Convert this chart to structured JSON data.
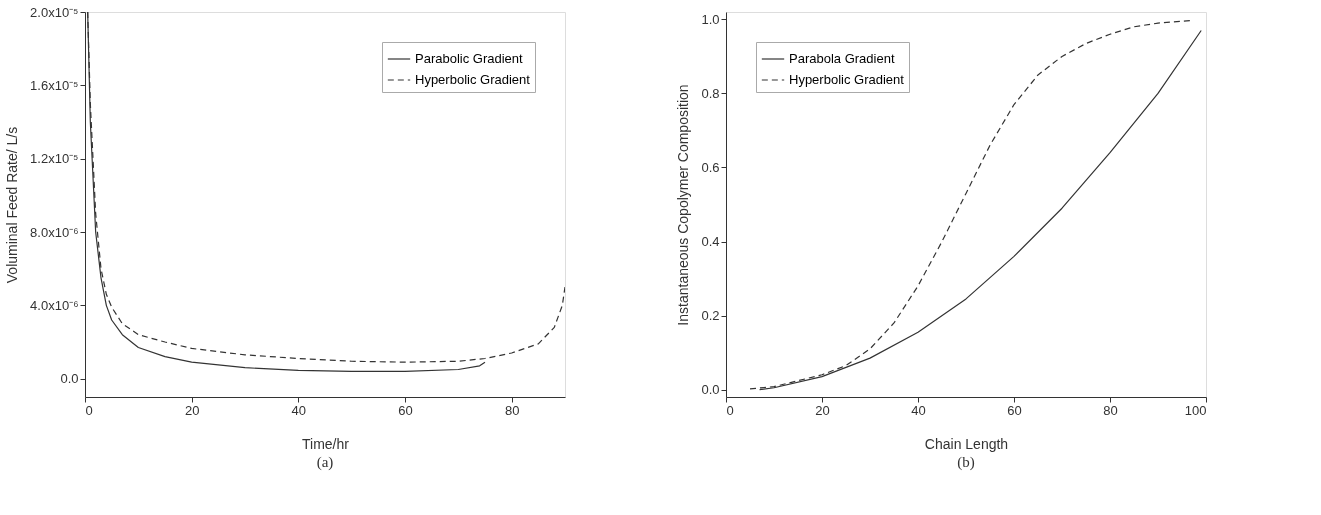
{
  "chart_data": [
    {
      "type": "line",
      "xlabel": "Time/hr",
      "ylabel": "Voluminal Feed Rate/ L/s",
      "annotations": [
        "(a)"
      ],
      "xlim": [
        0,
        90
      ],
      "xticks": [
        0,
        20,
        40,
        60,
        80
      ],
      "ylim": [
        -1e-06,
        2e-05
      ],
      "yticks": [
        {
          "value": 0,
          "label": "0.0"
        },
        {
          "value": 4e-06,
          "label": "4.0x10⁻⁶"
        },
        {
          "value": 8e-06,
          "label": "8.0x10⁻⁶"
        },
        {
          "value": 1.2e-05,
          "label": "1.2x10⁻⁵"
        },
        {
          "value": 1.6e-05,
          "label": "1.6x10⁻⁵"
        },
        {
          "value": 2e-05,
          "label": "2.0x10⁻⁵"
        }
      ],
      "grid": false,
      "legend": "top right",
      "marker": "none",
      "series": [
        {
          "name": "Parabolic Gradient",
          "color": "#333333",
          "line_style": "solid",
          "x": [
            0.5,
            1,
            2,
            3,
            4,
            5,
            7,
            10,
            15,
            20,
            30,
            40,
            50,
            60,
            70,
            74,
            75
          ],
          "values": [
            2e-05,
            1.4e-05,
            8e-06,
            5.5e-06,
            4e-06,
            3.2e-06,
            2.4e-06,
            1.7e-06,
            1.2e-06,
            9e-07,
            6e-07,
            4.5e-07,
            4e-07,
            4e-07,
            5e-07,
            7e-07,
            9e-07
          ]
        },
        {
          "name": "Hyperbolic Gradient",
          "color": "#333333",
          "line_style": "dashed",
          "x": [
            0.5,
            1,
            2,
            3,
            4,
            5,
            7,
            10,
            15,
            20,
            30,
            40,
            50,
            60,
            70,
            75,
            80,
            85,
            88,
            89.5,
            90
          ],
          "values": [
            2e-05,
            1.5e-05,
            9e-06,
            6e-06,
            4.6e-06,
            3.9e-06,
            3e-06,
            2.4e-06,
            2e-06,
            1.65e-06,
            1.3e-06,
            1.1e-06,
            9.5e-07,
            9e-07,
            9.5e-07,
            1.1e-06,
            1.4e-06,
            1.9e-06,
            2.8e-06,
            4e-06,
            5e-06
          ]
        }
      ]
    },
    {
      "type": "line",
      "xlabel": "Chain Length",
      "ylabel": "Instantaneous Copolymer Composition",
      "annotations": [
        "(b)"
      ],
      "xlim": [
        0,
        100
      ],
      "xticks": [
        0,
        20,
        40,
        60,
        80,
        100
      ],
      "ylim": [
        -0.02,
        1.02
      ],
      "yticks": [
        {
          "value": 0,
          "label": "0.0"
        },
        {
          "value": 0.2,
          "label": "0.2"
        },
        {
          "value": 0.4,
          "label": "0.4"
        },
        {
          "value": 0.6,
          "label": "0.6"
        },
        {
          "value": 0.8,
          "label": "0.8"
        },
        {
          "value": 1,
          "label": "1.0"
        }
      ],
      "grid": false,
      "legend": "top left",
      "marker": "none",
      "series": [
        {
          "name": "Parabola Gradient",
          "color": "#333333",
          "line_style": "solid",
          "x": [
            7,
            10,
            20,
            30,
            40,
            50,
            60,
            70,
            80,
            90,
            99
          ],
          "values": [
            0,
            0.005,
            0.035,
            0.085,
            0.155,
            0.245,
            0.36,
            0.49,
            0.64,
            0.8,
            0.97
          ]
        },
        {
          "name": "Hyperbolic Gradient",
          "color": "#333333",
          "line_style": "dashed",
          "x": [
            5,
            10,
            20,
            25,
            30,
            35,
            40,
            45,
            50,
            55,
            60,
            65,
            70,
            75,
            80,
            85,
            90,
            97
          ],
          "values": [
            0.002,
            0.008,
            0.04,
            0.065,
            0.11,
            0.18,
            0.28,
            0.4,
            0.53,
            0.66,
            0.77,
            0.85,
            0.9,
            0.935,
            0.96,
            0.98,
            0.99,
            0.997
          ]
        }
      ]
    }
  ]
}
